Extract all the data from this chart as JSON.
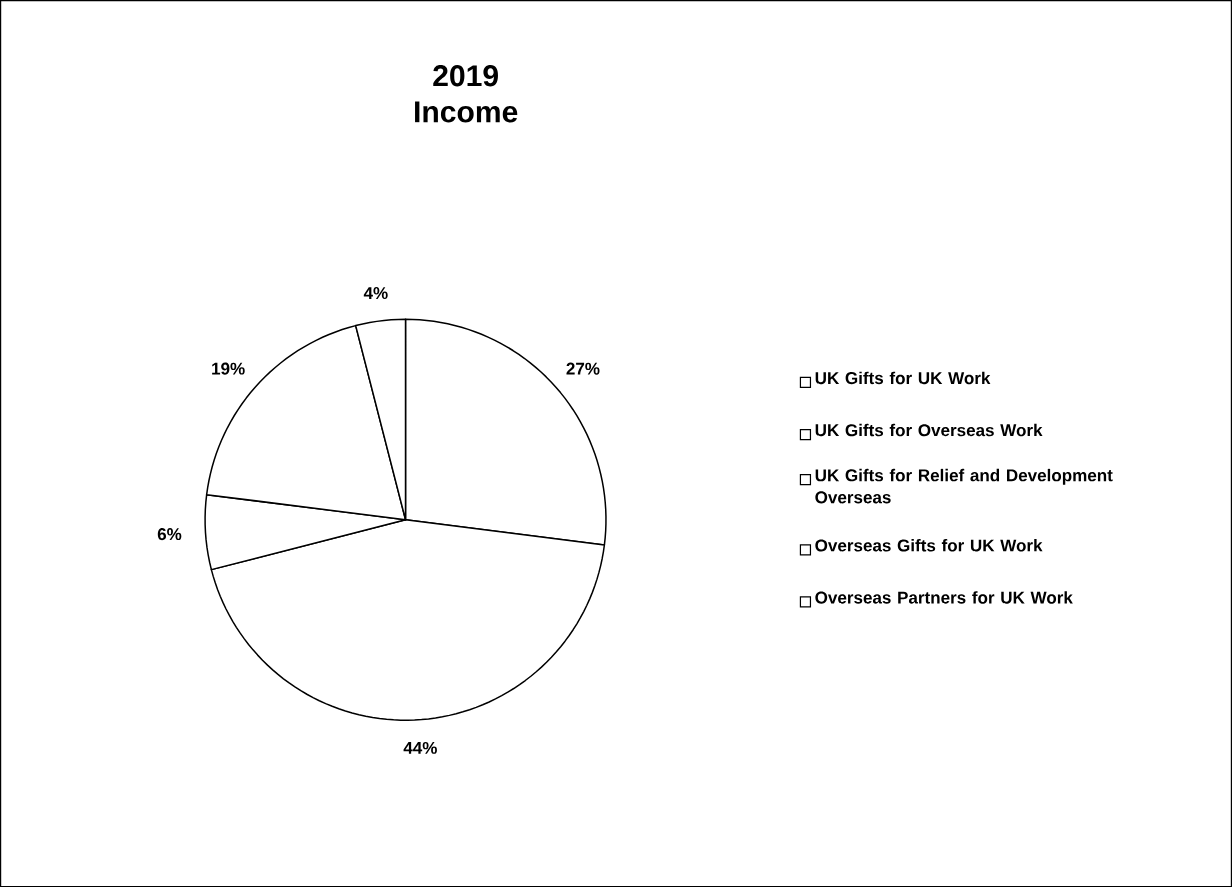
{
  "chart_data": {
    "type": "pie",
    "title": "2019 Income",
    "categories": [
      "UK Gifts for UK Work",
      "UK Gifts for Overseas Work",
      "UK Gifts for Relief and Development Overseas",
      "Overseas Gifts for UK Work",
      "Overseas Partners for UK Work"
    ],
    "values": [
      27,
      44,
      6,
      19,
      4
    ],
    "colors": [
      "#ffffff",
      "#ffffff",
      "#ffffff",
      "#ffffff",
      "#ffffff"
    ],
    "value_labels": [
      "27%",
      "44%",
      "6%",
      "19%",
      "4%"
    ],
    "legend": "right"
  }
}
